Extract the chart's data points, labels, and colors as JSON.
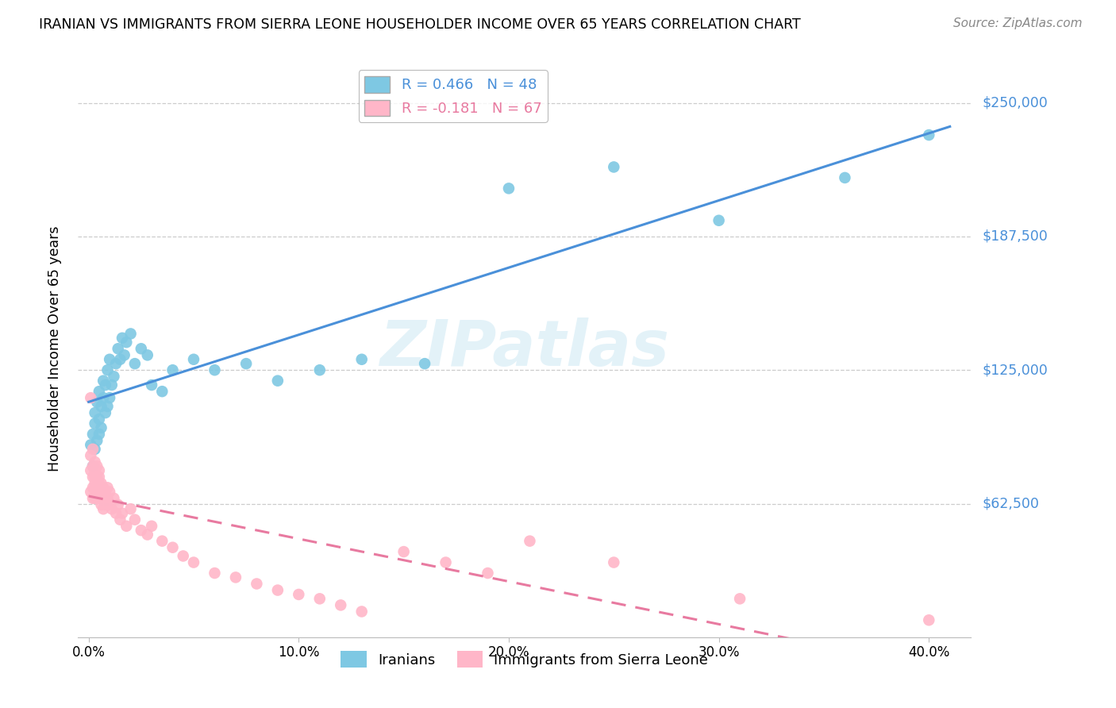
{
  "title": "IRANIAN VS IMMIGRANTS FROM SIERRA LEONE HOUSEHOLDER INCOME OVER 65 YEARS CORRELATION CHART",
  "source": "Source: ZipAtlas.com",
  "ylabel": "Householder Income Over 65 years",
  "xlabel_ticks": [
    "0.0%",
    "10.0%",
    "20.0%",
    "30.0%",
    "40.0%"
  ],
  "xtick_vals": [
    0.0,
    0.1,
    0.2,
    0.3,
    0.4
  ],
  "ytick_labels": [
    "$62,500",
    "$125,000",
    "$187,500",
    "$250,000"
  ],
  "ytick_values": [
    62500,
    125000,
    187500,
    250000
  ],
  "ylim": [
    0,
    270000
  ],
  "xlim": [
    -0.005,
    0.42
  ],
  "legend1_text": "R = 0.466   N = 48",
  "legend2_text": "R = -0.181   N = 67",
  "legend_labels": [
    "Iranians",
    "Immigrants from Sierra Leone"
  ],
  "color_blue": "#7ec8e3",
  "color_pink": "#ffb6c8",
  "color_blue_line": "#4a90d9",
  "color_pink_line": "#e87aa0",
  "watermark": "ZIPatlas",
  "iranians_x": [
    0.001,
    0.002,
    0.002,
    0.003,
    0.003,
    0.003,
    0.004,
    0.004,
    0.005,
    0.005,
    0.005,
    0.006,
    0.006,
    0.007,
    0.007,
    0.008,
    0.008,
    0.009,
    0.009,
    0.01,
    0.01,
    0.011,
    0.012,
    0.013,
    0.014,
    0.015,
    0.016,
    0.017,
    0.018,
    0.02,
    0.022,
    0.025,
    0.028,
    0.03,
    0.035,
    0.04,
    0.05,
    0.06,
    0.075,
    0.09,
    0.11,
    0.13,
    0.16,
    0.2,
    0.25,
    0.3,
    0.36,
    0.4
  ],
  "iranians_y": [
    90000,
    95000,
    80000,
    100000,
    105000,
    88000,
    92000,
    110000,
    95000,
    102000,
    115000,
    108000,
    98000,
    120000,
    112000,
    105000,
    118000,
    108000,
    125000,
    112000,
    130000,
    118000,
    122000,
    128000,
    135000,
    130000,
    140000,
    132000,
    138000,
    142000,
    128000,
    135000,
    132000,
    118000,
    115000,
    125000,
    130000,
    125000,
    128000,
    120000,
    125000,
    130000,
    128000,
    210000,
    220000,
    195000,
    215000,
    235000
  ],
  "sierra_leone_x": [
    0.001,
    0.001,
    0.001,
    0.001,
    0.002,
    0.002,
    0.002,
    0.002,
    0.002,
    0.003,
    0.003,
    0.003,
    0.003,
    0.003,
    0.003,
    0.004,
    0.004,
    0.004,
    0.004,
    0.005,
    0.005,
    0.005,
    0.005,
    0.005,
    0.006,
    0.006,
    0.006,
    0.007,
    0.007,
    0.007,
    0.008,
    0.008,
    0.009,
    0.009,
    0.01,
    0.01,
    0.011,
    0.012,
    0.013,
    0.014,
    0.015,
    0.016,
    0.018,
    0.02,
    0.022,
    0.025,
    0.028,
    0.03,
    0.035,
    0.04,
    0.045,
    0.05,
    0.06,
    0.07,
    0.08,
    0.09,
    0.1,
    0.11,
    0.12,
    0.13,
    0.15,
    0.17,
    0.19,
    0.21,
    0.25,
    0.31,
    0.4
  ],
  "sierra_leone_y": [
    112000,
    85000,
    78000,
    68000,
    80000,
    75000,
    70000,
    88000,
    65000,
    82000,
    75000,
    70000,
    78000,
    65000,
    72000,
    80000,
    72000,
    68000,
    75000,
    78000,
    72000,
    68000,
    65000,
    75000,
    72000,
    68000,
    62000,
    70000,
    65000,
    60000,
    68000,
    62000,
    65000,
    70000,
    62000,
    68000,
    60000,
    65000,
    58000,
    62000,
    55000,
    58000,
    52000,
    60000,
    55000,
    50000,
    48000,
    52000,
    45000,
    42000,
    38000,
    35000,
    30000,
    28000,
    25000,
    22000,
    20000,
    18000,
    15000,
    12000,
    40000,
    35000,
    30000,
    45000,
    35000,
    18000,
    8000
  ]
}
